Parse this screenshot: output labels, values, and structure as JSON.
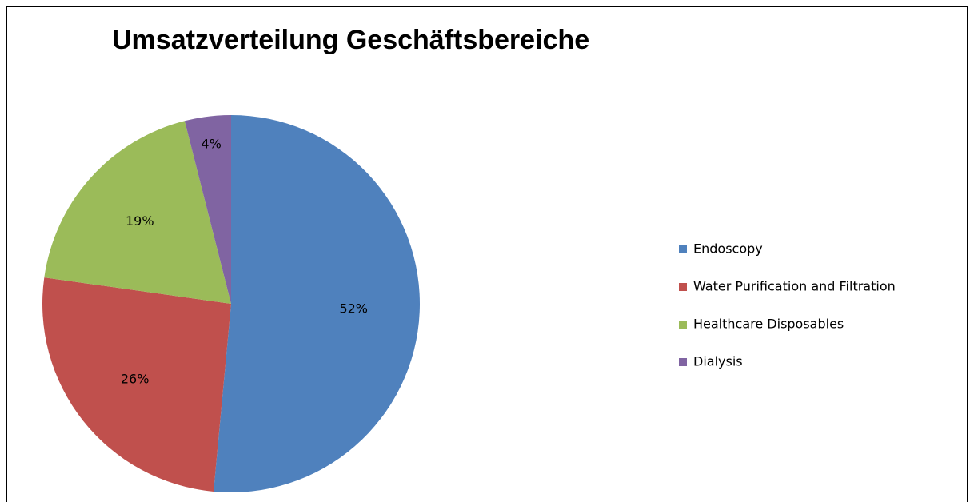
{
  "chart_data": {
    "type": "pie",
    "title": "Umsatzverteilung Geschäftsbereiche",
    "categories": [
      "Endoscopy",
      "Water Purification and Filtration",
      "Healthcare Disposables",
      "Dialysis"
    ],
    "values": [
      52,
      26,
      19,
      4
    ],
    "value_labels": [
      "52%",
      "26%",
      "19%",
      "4%"
    ],
    "colors": [
      "#4f81bd",
      "#c0504d",
      "#9bbb59",
      "#8064a2"
    ],
    "legend": "right"
  }
}
